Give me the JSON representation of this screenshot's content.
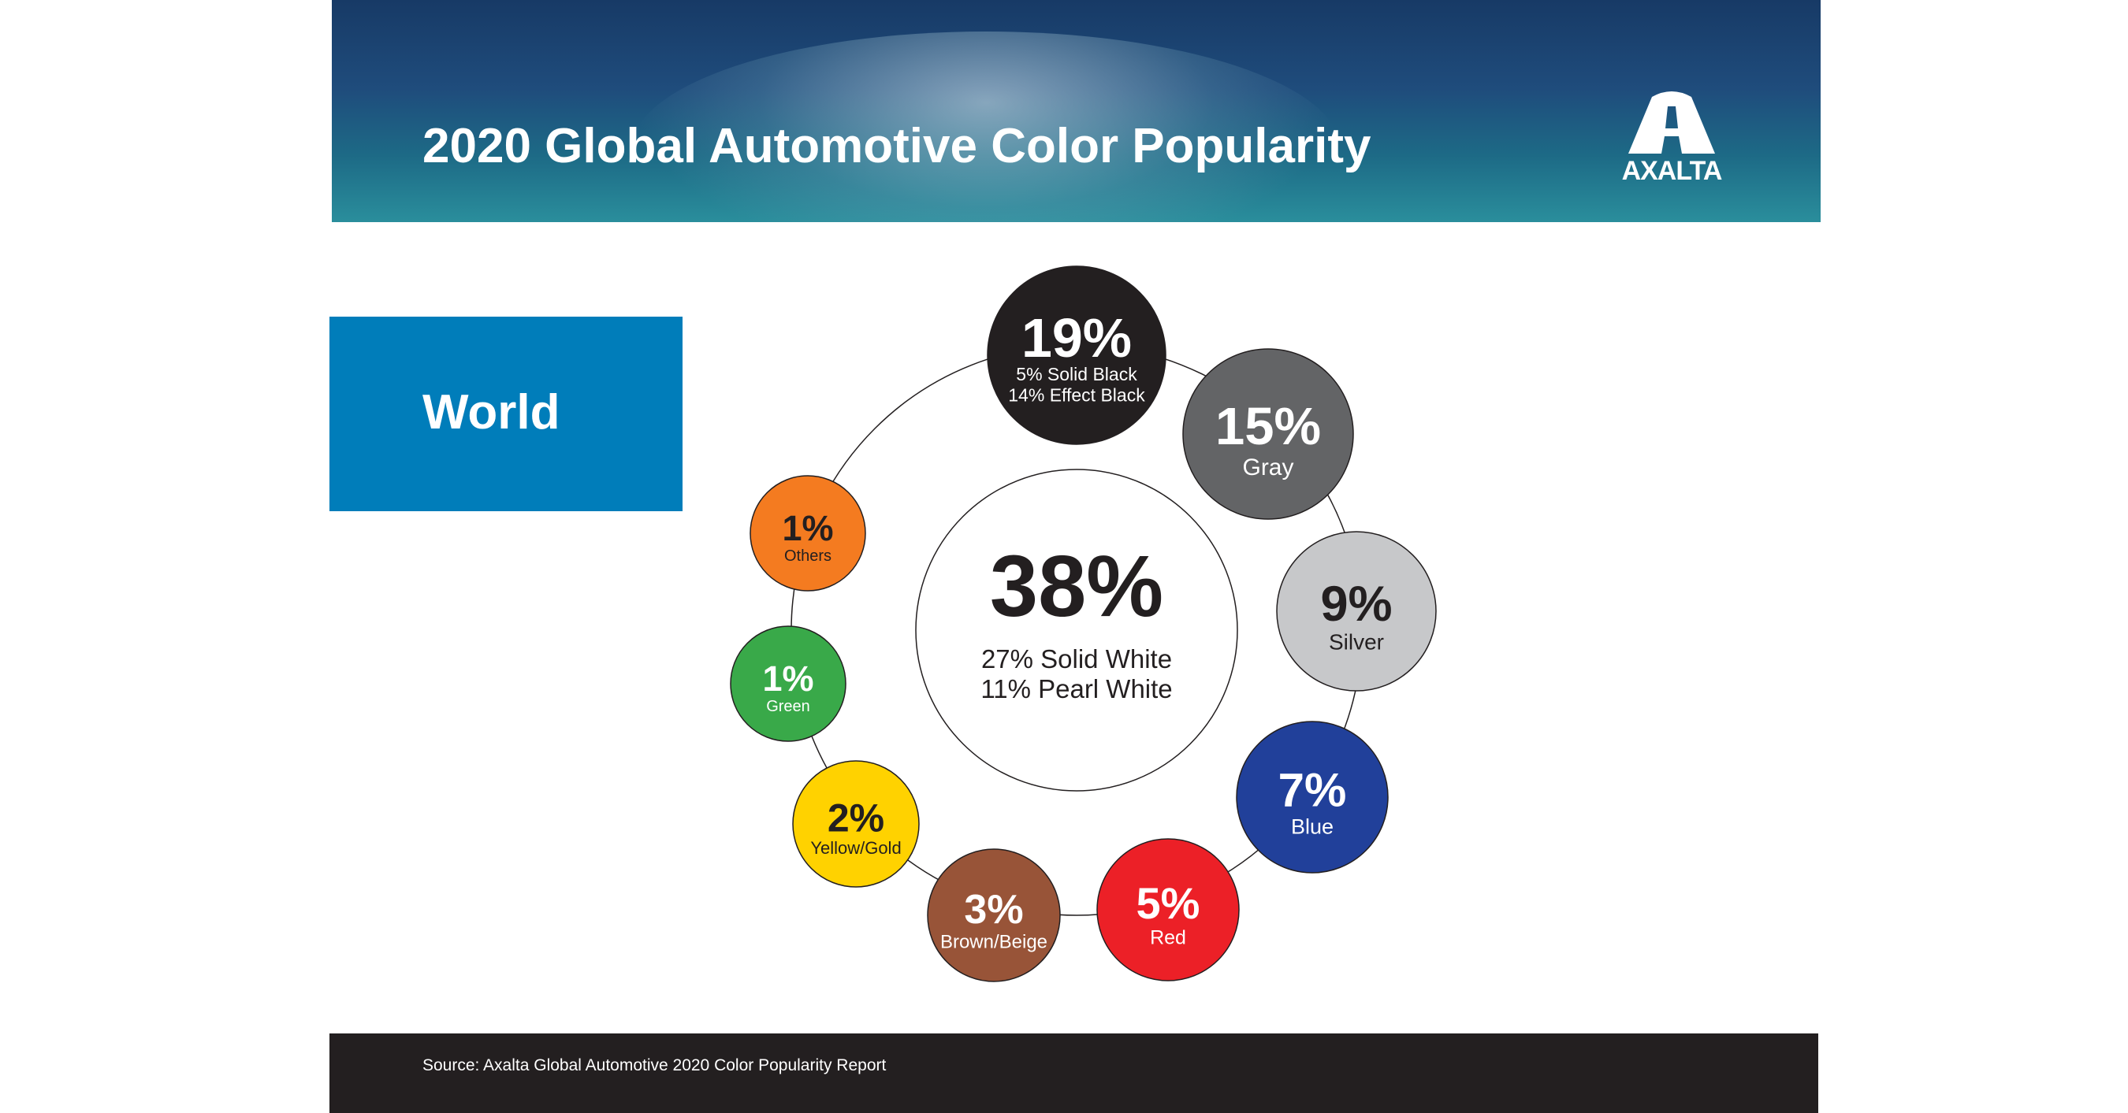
{
  "header": {
    "title": "2020 Global Automotive Color Popularity",
    "logo_text": "AXALTA"
  },
  "region": {
    "label": "World"
  },
  "footer": {
    "source": "Source: Axalta Global Automotive 2020 Color Popularity Report"
  },
  "chart_data": {
    "type": "bubble-ring",
    "title": "2020 Global Automotive Color Popularity",
    "region": "World",
    "center": {
      "value": 38,
      "label": "38%",
      "lines": [
        "27% Solid White",
        "11% Pearl White"
      ],
      "color": "#ffffff"
    },
    "items": [
      {
        "value": 19,
        "label": "19%",
        "lines": [
          "5% Solid Black",
          "14% Effect Black"
        ],
        "color": "#231f20",
        "text_color": "#ffffff"
      },
      {
        "value": 15,
        "label": "15%",
        "lines": [
          "Gray"
        ],
        "color": "#636466",
        "text_color": "#ffffff"
      },
      {
        "value": 9,
        "label": "9%",
        "lines": [
          "Silver"
        ],
        "color": "#c7c8ca",
        "text_color": "#231f20"
      },
      {
        "value": 7,
        "label": "7%",
        "lines": [
          "Blue"
        ],
        "color": "#21409a",
        "text_color": "#ffffff"
      },
      {
        "value": 5,
        "label": "5%",
        "lines": [
          "Red"
        ],
        "color": "#ec2027",
        "text_color": "#ffffff"
      },
      {
        "value": 3,
        "label": "3%",
        "lines": [
          "Brown/Beige"
        ],
        "color": "#985438",
        "text_color": "#ffffff"
      },
      {
        "value": 2,
        "label": "2%",
        "lines": [
          "Yellow/Gold"
        ],
        "color": "#ffd200",
        "text_color": "#231f20"
      },
      {
        "value": 1,
        "label": "1%",
        "lines": [
          "Green"
        ],
        "color": "#39a949",
        "text_color": "#ffffff"
      },
      {
        "value": 1,
        "label": "1%",
        "lines": [
          "Others"
        ],
        "color": "#f47b20",
        "text_color": "#231f20"
      }
    ]
  }
}
